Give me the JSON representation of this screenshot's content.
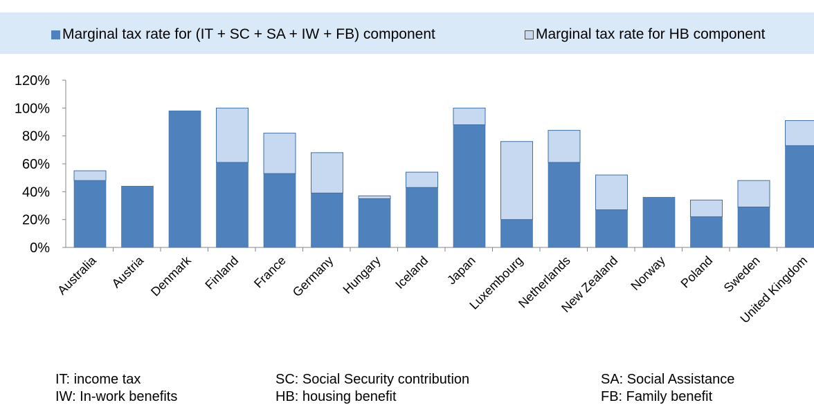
{
  "legend": {
    "items": [
      {
        "label": "Marginal tax rate for (IT + SC + SA + IW + FB) component",
        "color": "#4f81bd"
      },
      {
        "label": "Marginal tax rate for HB component",
        "color": "#c6d9f1"
      }
    ]
  },
  "chart_data": {
    "type": "bar",
    "stacked": true,
    "categories": [
      "Australia",
      "Austria",
      "Denmark",
      "Finland",
      "France",
      "Germany",
      "Hungary",
      "Iceland",
      "Japan",
      "Luxembourg",
      "Netherlands",
      "New Zealand",
      "Norway",
      "Poland",
      "Sweden",
      "United Kingdom"
    ],
    "series": [
      {
        "name": "Marginal tax rate for (IT + SC + SA + IW + FB) component",
        "color": "#4f81bd",
        "values": [
          48,
          44,
          98,
          61,
          53,
          39,
          35,
          43,
          88,
          20,
          61,
          27,
          36,
          22,
          29,
          73
        ]
      },
      {
        "name": "Marginal tax rate for HB component",
        "color": "#c6d9f1",
        "values": [
          7,
          0,
          0,
          39,
          29,
          29,
          2,
          11,
          12,
          56,
          23,
          25,
          0,
          12,
          19,
          18
        ]
      }
    ],
    "ylim": [
      0,
      120
    ],
    "yticks": [
      0,
      20,
      40,
      60,
      80,
      100,
      120
    ],
    "ytick_labels": [
      "0%",
      "20%",
      "40%",
      "60%",
      "80%",
      "100%",
      "120%"
    ],
    "grid": false,
    "legend_position": "top"
  },
  "notes": [
    {
      "text": "IT: income tax"
    },
    {
      "text": "IW: In-work benefits"
    },
    {
      "text": "SC: Social Security contribution"
    },
    {
      "text": "HB: housing benefit"
    },
    {
      "text": "SA: Social Assistance"
    },
    {
      "text": "FB: Family benefit"
    }
  ]
}
